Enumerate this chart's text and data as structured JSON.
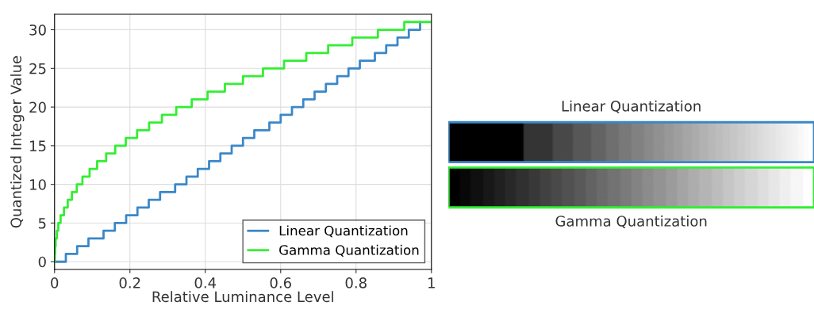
{
  "chart_data": [
    {
      "type": "step",
      "xlabel": "Relative Luminance Level",
      "ylabel": "Quantized Integer Value",
      "xlim": [
        0,
        1
      ],
      "xticks": [
        0,
        0.2,
        0.4,
        0.6,
        0.8,
        1
      ],
      "ylim": [
        -1,
        32
      ],
      "yticks": [
        0,
        5,
        10,
        15,
        20,
        25,
        30
      ],
      "grid": true,
      "legend": "bottom right",
      "series": [
        {
          "name": "Linear Quantization",
          "color": "#3a87c8",
          "x": [
            0,
            0.03,
            0.06,
            0.09,
            0.13,
            0.16,
            0.19,
            0.22,
            0.25,
            0.28,
            0.32,
            0.35,
            0.38,
            0.41,
            0.44,
            0.47,
            0.5,
            0.53,
            0.57,
            0.6,
            0.63,
            0.66,
            0.69,
            0.72,
            0.75,
            0.78,
            0.81,
            0.85,
            0.88,
            0.91,
            0.94,
            0.97
          ],
          "values": [
            0,
            1,
            2,
            3,
            4,
            5,
            6,
            7,
            8,
            9,
            10,
            11,
            12,
            13,
            14,
            15,
            16,
            17,
            18,
            19,
            20,
            21,
            22,
            23,
            24,
            25,
            26,
            27,
            28,
            29,
            30,
            31
          ]
        },
        {
          "name": "Gamma Quantization",
          "color": "#33ee33",
          "x": [
            0,
            0.0005,
            0.0015,
            0.003,
            0.006,
            0.01,
            0.016,
            0.025,
            0.035,
            0.046,
            0.059,
            0.074,
            0.093,
            0.113,
            0.137,
            0.161,
            0.189,
            0.219,
            0.251,
            0.285,
            0.323,
            0.364,
            0.406,
            0.452,
            0.5,
            0.553,
            0.609,
            0.668,
            0.726,
            0.79,
            0.858,
            0.928,
            1
          ],
          "values": [
            0,
            1,
            2,
            3,
            4,
            5,
            6,
            7,
            8,
            9,
            10,
            11,
            12,
            13,
            14,
            15,
            16,
            17,
            18,
            19,
            20,
            21,
            22,
            23,
            24,
            25,
            26,
            27,
            28,
            29,
            30,
            31,
            31
          ]
        }
      ]
    },
    {
      "type": "other",
      "annotations": [
        "Linear Quantization",
        "Gamma Quantization"
      ],
      "series": [
        {
          "color": "#3a87c8"
        },
        {
          "color": "#33ee33"
        }
      ]
    }
  ]
}
